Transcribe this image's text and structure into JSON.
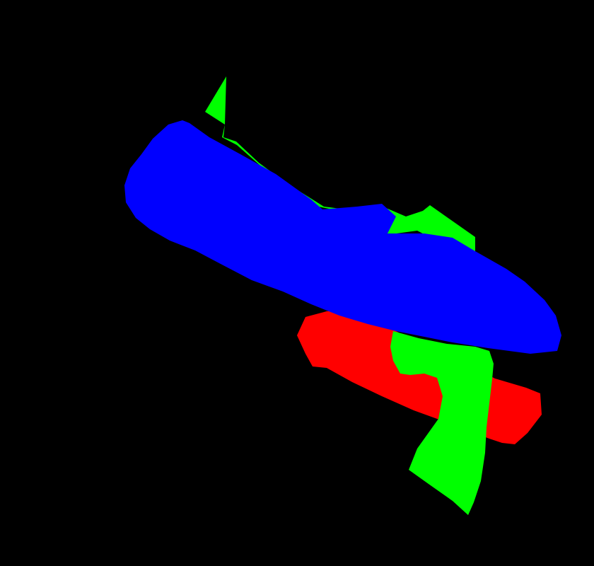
{
  "colors": {
    "background": "#000000",
    "green": "#00ff00",
    "blue": "#0000ff",
    "red": "#ff0000"
  },
  "segments": [
    {
      "name": "green-region",
      "color_key": "green"
    },
    {
      "name": "red-region",
      "color_key": "red"
    },
    {
      "name": "blue-region",
      "color_key": "blue"
    },
    {
      "name": "green-lower-region",
      "color_key": "green"
    }
  ]
}
